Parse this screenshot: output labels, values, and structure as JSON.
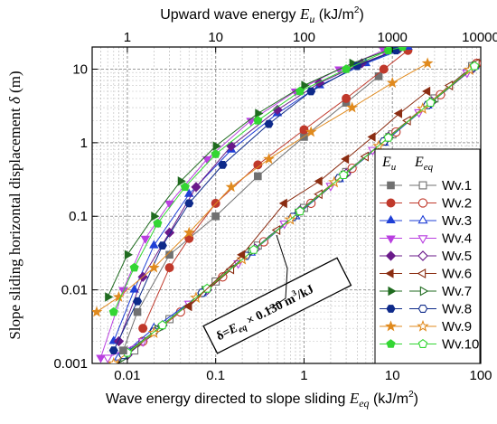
{
  "chart_data": {
    "type": "scatter",
    "title": "",
    "xlabel_bottom": {
      "text": "Wave energy directed to slope sliding",
      "sym": "E",
      "sub": "eq",
      "unit": " (kJ/m",
      "sup": "2",
      "tail": ")"
    },
    "xlabel_top": {
      "text": "Upward wave energy",
      "sym": "E",
      "sub": "u",
      "unit": " (kJ/m",
      "sup": "2",
      "tail": ")"
    },
    "ylabel": {
      "text": "Slope sliding horizontal displacement",
      "sym": "δ",
      "unit": " (m)"
    },
    "x_bottom_range": [
      0.004,
      100
    ],
    "x_top_range": [
      0.4,
      10000
    ],
    "y_range": [
      0.001,
      20
    ],
    "scale": "log",
    "grid": true,
    "x_bottom_ticks": [
      "0.01",
      "0.1",
      "1",
      "10",
      "100"
    ],
    "x_top_ticks": [
      "1",
      "10",
      "100",
      "1000",
      "10000"
    ],
    "y_ticks": [
      "0.001",
      "0.01",
      "0.1",
      "1",
      "10"
    ],
    "legend": {
      "placement": "right",
      "col1": "E",
      "col1_sub": "u",
      "col2": "E",
      "col2_sub": "eq"
    },
    "fit_line": {
      "label_pre": "δ=",
      "label_sym": "E",
      "label_sub": "eq",
      "label_mid": " × 0.130 m",
      "label_sup": "3",
      "label_post": "/kJ",
      "slope": 0.13
    },
    "series": [
      {
        "name": "Wv.1",
        "color": "#707070",
        "marker": "square",
        "eu": [
          [
            0.9,
            0.0015
          ],
          [
            1.3,
            0.005
          ],
          [
            3,
            0.03
          ],
          [
            10,
            0.1
          ],
          [
            30,
            0.35
          ],
          [
            100,
            1.2
          ],
          [
            300,
            3.5
          ],
          [
            700,
            8
          ]
        ],
        "eq": [
          [
            0.012,
            0.0015
          ],
          [
            0.03,
            0.004
          ],
          [
            0.1,
            0.013
          ],
          [
            0.3,
            0.04
          ],
          [
            1,
            0.13
          ],
          [
            3,
            0.4
          ],
          [
            10,
            1.3
          ],
          [
            30,
            4
          ],
          [
            80,
            11
          ]
        ]
      },
      {
        "name": "Wv.2",
        "color": "#c0392b",
        "marker": "circle",
        "eu": [
          [
            1.5,
            0.003
          ],
          [
            3,
            0.02
          ],
          [
            5,
            0.05
          ],
          [
            10,
            0.15
          ],
          [
            30,
            0.5
          ],
          [
            100,
            1.5
          ],
          [
            300,
            4
          ],
          [
            800,
            10
          ],
          [
            1500,
            18
          ]
        ],
        "eq": [
          [
            0.015,
            0.002
          ],
          [
            0.04,
            0.005
          ],
          [
            0.12,
            0.015
          ],
          [
            0.35,
            0.045
          ],
          [
            1.2,
            0.15
          ],
          [
            3.5,
            0.45
          ],
          [
            11,
            1.4
          ],
          [
            35,
            4.5
          ],
          [
            90,
            12
          ]
        ]
      },
      {
        "name": "Wv.3",
        "color": "#1f3fd6",
        "marker": "triangle-up",
        "eu": [
          [
            0.7,
            0.002
          ],
          [
            1.2,
            0.01
          ],
          [
            2,
            0.04
          ],
          [
            5,
            0.2
          ],
          [
            15,
            0.8
          ],
          [
            50,
            2.5
          ],
          [
            150,
            6
          ],
          [
            500,
            12
          ],
          [
            1500,
            20
          ]
        ],
        "eq": [
          [
            0.008,
            0.0012
          ],
          [
            0.02,
            0.003
          ],
          [
            0.07,
            0.009
          ],
          [
            0.25,
            0.032
          ],
          [
            0.8,
            0.1
          ],
          [
            2.5,
            0.32
          ],
          [
            8,
            1
          ],
          [
            25,
            3.2
          ],
          [
            85,
            11
          ]
        ]
      },
      {
        "name": "Wv.4",
        "color": "#b93fe0",
        "marker": "triangle-down",
        "eu": [
          [
            0.5,
            0.0012
          ],
          [
            0.9,
            0.01
          ],
          [
            1.6,
            0.05
          ],
          [
            3,
            0.15
          ],
          [
            8,
            0.6
          ],
          [
            25,
            2
          ],
          [
            80,
            5
          ],
          [
            250,
            10
          ],
          [
            800,
            18
          ]
        ],
        "eq": [
          [
            0.006,
            0.0012
          ],
          [
            0.015,
            0.002
          ],
          [
            0.05,
            0.0065
          ],
          [
            0.18,
            0.023
          ],
          [
            0.6,
            0.08
          ],
          [
            2,
            0.26
          ],
          [
            6,
            0.8
          ],
          [
            20,
            2.6
          ],
          [
            70,
            9
          ]
        ]
      },
      {
        "name": "Wv.5",
        "color": "#6a1a8a",
        "marker": "diamond",
        "eu": [
          [
            0.8,
            0.002
          ],
          [
            1.5,
            0.015
          ],
          [
            3,
            0.06
          ],
          [
            6,
            0.25
          ],
          [
            15,
            0.9
          ],
          [
            50,
            2.8
          ],
          [
            150,
            6.5
          ],
          [
            450,
            12
          ],
          [
            1200,
            19
          ]
        ],
        "eq": [
          [
            0.01,
            0.0013
          ],
          [
            0.025,
            0.0033
          ],
          [
            0.08,
            0.01
          ],
          [
            0.28,
            0.036
          ],
          [
            0.9,
            0.12
          ],
          [
            3,
            0.38
          ],
          [
            9,
            1.2
          ],
          [
            28,
            3.6
          ],
          [
            80,
            10
          ]
        ]
      },
      {
        "name": "Wv.6",
        "color": "#8b2d12",
        "marker": "triangle-left",
        "eu": [
          [
            5,
            0.006
          ],
          [
            20,
            0.03
          ],
          [
            60,
            0.15
          ],
          [
            150,
            0.3
          ],
          [
            300,
            0.6
          ],
          [
            600,
            1.2
          ],
          [
            1200,
            2.5
          ],
          [
            2500,
            5
          ]
        ],
        "eq": [
          [
            0.05,
            0.006
          ],
          [
            0.15,
            0.019
          ],
          [
            0.5,
            0.065
          ],
          [
            1.5,
            0.2
          ],
          [
            5,
            0.65
          ],
          [
            15,
            2
          ],
          [
            45,
            6
          ],
          [
            90,
            12
          ]
        ]
      },
      {
        "name": "Wv.7",
        "color": "#1f6b1f",
        "marker": "triangle-right",
        "eu": [
          [
            0.6,
            0.008
          ],
          [
            1,
            0.03
          ],
          [
            2,
            0.1
          ],
          [
            4,
            0.3
          ],
          [
            10,
            0.9
          ],
          [
            30,
            2.5
          ],
          [
            100,
            6
          ],
          [
            350,
            12
          ],
          [
            1000,
            19
          ]
        ],
        "eq": [
          [
            0.009,
            0.0012
          ],
          [
            0.022,
            0.0029
          ],
          [
            0.075,
            0.0098
          ],
          [
            0.25,
            0.033
          ],
          [
            0.85,
            0.11
          ],
          [
            2.8,
            0.36
          ],
          [
            9,
            1.17
          ],
          [
            28,
            3.6
          ],
          [
            85,
            11
          ]
        ]
      },
      {
        "name": "Wv.8",
        "color": "#0e2a8a",
        "marker": "hexagon",
        "eu": [
          [
            0.7,
            0.0015
          ],
          [
            1.3,
            0.007
          ],
          [
            2.5,
            0.04
          ],
          [
            5,
            0.15
          ],
          [
            12,
            0.5
          ],
          [
            40,
            1.8
          ],
          [
            120,
            5
          ],
          [
            400,
            11
          ],
          [
            1100,
            18
          ]
        ],
        "eq": [
          [
            0.009,
            0.0013
          ],
          [
            0.02,
            0.0027
          ],
          [
            0.07,
            0.0091
          ],
          [
            0.22,
            0.029
          ],
          [
            0.75,
            0.098
          ],
          [
            2.5,
            0.33
          ],
          [
            8,
            1.04
          ],
          [
            25,
            3.25
          ],
          [
            80,
            10.4
          ]
        ]
      },
      {
        "name": "Wv.9",
        "color": "#e08a1e",
        "marker": "star",
        "eu": [
          [
            0.45,
            0.005
          ],
          [
            0.8,
            0.008
          ],
          [
            2,
            0.02
          ],
          [
            5,
            0.06
          ],
          [
            15,
            0.25
          ],
          [
            40,
            0.6
          ],
          [
            120,
            1.4
          ],
          [
            350,
            3
          ],
          [
            1000,
            6.5
          ],
          [
            2500,
            12
          ]
        ],
        "eq": [
          [
            0.007,
            0.001
          ],
          [
            0.02,
            0.0026
          ],
          [
            0.06,
            0.0078
          ],
          [
            0.2,
            0.026
          ],
          [
            0.7,
            0.09
          ],
          [
            2.2,
            0.29
          ],
          [
            7,
            0.9
          ],
          [
            22,
            2.9
          ],
          [
            75,
            9.8
          ]
        ]
      },
      {
        "name": "Wv.10",
        "color": "#33d633",
        "marker": "pentagon",
        "eu": [
          [
            0.7,
            0.005
          ],
          [
            1.2,
            0.02
          ],
          [
            2.2,
            0.08
          ],
          [
            4.5,
            0.25
          ],
          [
            10,
            0.7
          ],
          [
            30,
            2
          ],
          [
            90,
            5
          ],
          [
            300,
            10
          ],
          [
            900,
            18
          ],
          [
            1300,
            20
          ]
        ],
        "eq": [
          [
            0.01,
            0.0014
          ],
          [
            0.025,
            0.0033
          ],
          [
            0.08,
            0.0104
          ],
          [
            0.27,
            0.035
          ],
          [
            0.9,
            0.117
          ],
          [
            2.8,
            0.364
          ],
          [
            9,
            1.17
          ],
          [
            27,
            3.5
          ],
          [
            85,
            11
          ]
        ]
      }
    ]
  }
}
